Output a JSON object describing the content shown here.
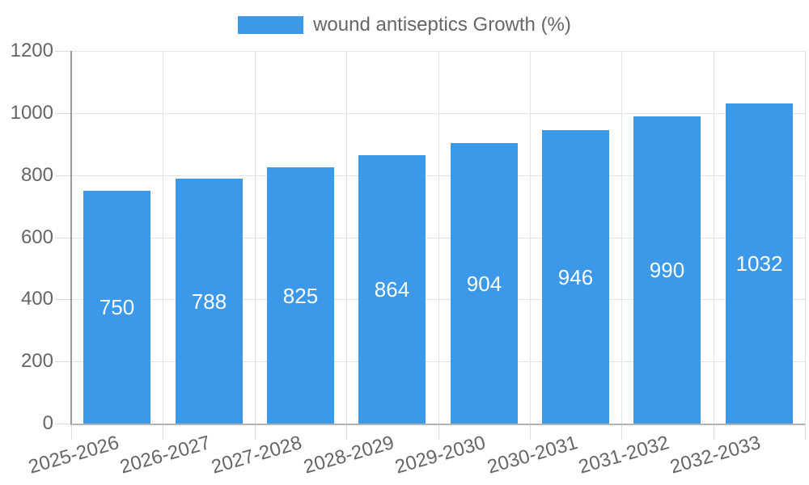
{
  "legend": {
    "label": "wound antiseptics Growth (%)"
  },
  "colors": {
    "bar": "#3c99ea",
    "bar_label": "#ffffff",
    "tick_text": "#666666",
    "legend_text": "#666666",
    "grid": "#e3e3e3",
    "tick": "#dcdcdc",
    "axis_y": "#999999",
    "axis_x": "#b3b3b3",
    "background": "#ffffff"
  },
  "chart_data": {
    "type": "bar",
    "title": "",
    "legend": "wound antiseptics Growth (%)",
    "legend_position": "top",
    "categories": [
      "2025-2026",
      "2026-2027",
      "2027-2028",
      "2028-2029",
      "2029-2030",
      "2030-2031",
      "2031-2032",
      "2032-2033"
    ],
    "values": [
      750,
      788,
      825,
      864,
      904,
      946,
      990,
      1032
    ],
    "xlabel": "",
    "ylabel": "",
    "ylim": [
      0,
      1200
    ],
    "ytick_step": 200,
    "ytick_labels": [
      "0",
      "200",
      "400",
      "600",
      "800",
      "1000",
      "1200"
    ],
    "grid": true,
    "bar_labels_inside": true,
    "x_label_rotation_deg": -16
  }
}
